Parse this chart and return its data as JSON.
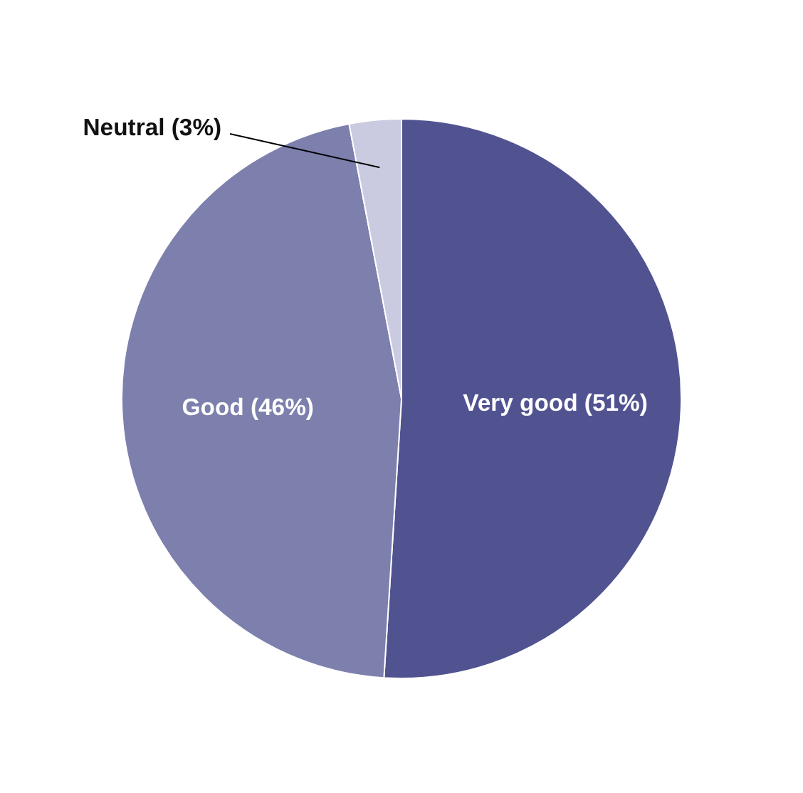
{
  "chart_data": {
    "type": "pie",
    "categories": [
      "Very good (51%)",
      "Good (46%)",
      "Neutral (3%)"
    ],
    "values": [
      51,
      46,
      3
    ],
    "colors": [
      "#515391",
      "#7d7fad",
      "#cacbe0"
    ]
  }
}
